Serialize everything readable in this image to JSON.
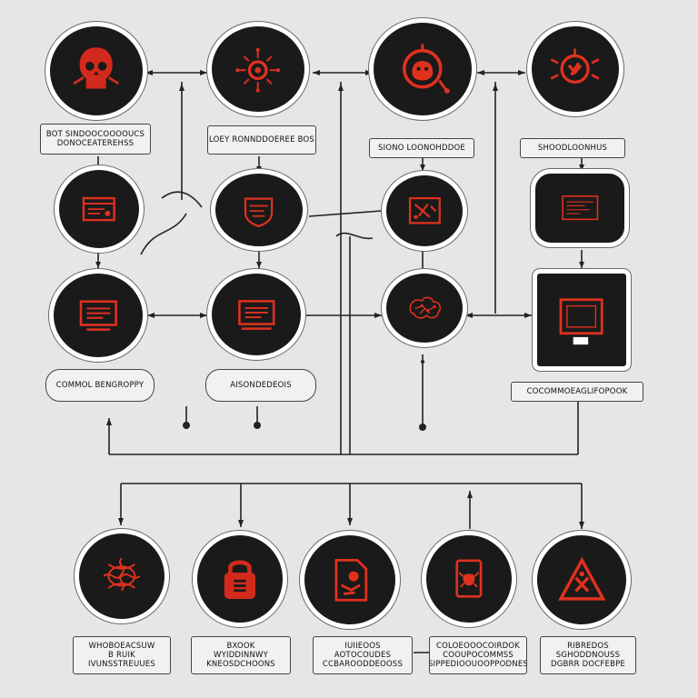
{
  "colors": {
    "background": "#e6e6e6",
    "node_fill": "#1b1a1a",
    "node_border": "#ffffff",
    "accent_red": "#e0311f",
    "connector": "#222222"
  },
  "labels": {
    "top1": "BOT SINDOOCOOOOUCS\nDONOCEATEREHSS",
    "top2": "LOEY RONNDDOEREE BOS",
    "top3": "SIONO LOONOHDDOE",
    "top4": "SHOODLOONHUS",
    "mid1": "COMMOL BENGROPPY",
    "mid2": "AISONDEDEOIS",
    "mid4": "COCOMMOEAGLIFOPOOK",
    "bot1": "WHOBOEACSUW\nB RUIK\nIVUNSSTREUUES",
    "bot2": "BXOOK\nWYIDDINNWY\nKNEOSDCHOONS",
    "bot3": "IUIIEOOS\nAOTOCOUDES\nCCBAROODDEOOSS",
    "bot4": "COLOEOOOCOIRDOK\nCOOUPOCOMMSS\nSIPPEDIOOUOOPPODNES",
    "bot5": "RIBREDOS\nSGHODDNOUSS\nDGBRR DOCFEBPE"
  },
  "icons": {
    "n1": "skull-head-icon",
    "n2": "virus-gear-icon",
    "n3": "bug-target-icon",
    "n4": "malware-bug-icon",
    "n5": "code-window-icon",
    "n6": "shield-screen-icon",
    "n7": "tools-panel-icon",
    "n8": "terminal-screen-icon",
    "n9": "monitor-icon",
    "n10": "monitor-icon",
    "n11": "brain-network-icon",
    "n12": "server-monitor-icon",
    "b1": "tangled-network-icon",
    "b2": "padlock-icon",
    "b3": "infected-document-icon",
    "b4": "bug-file-icon",
    "b5": "warning-triangle-icon"
  }
}
